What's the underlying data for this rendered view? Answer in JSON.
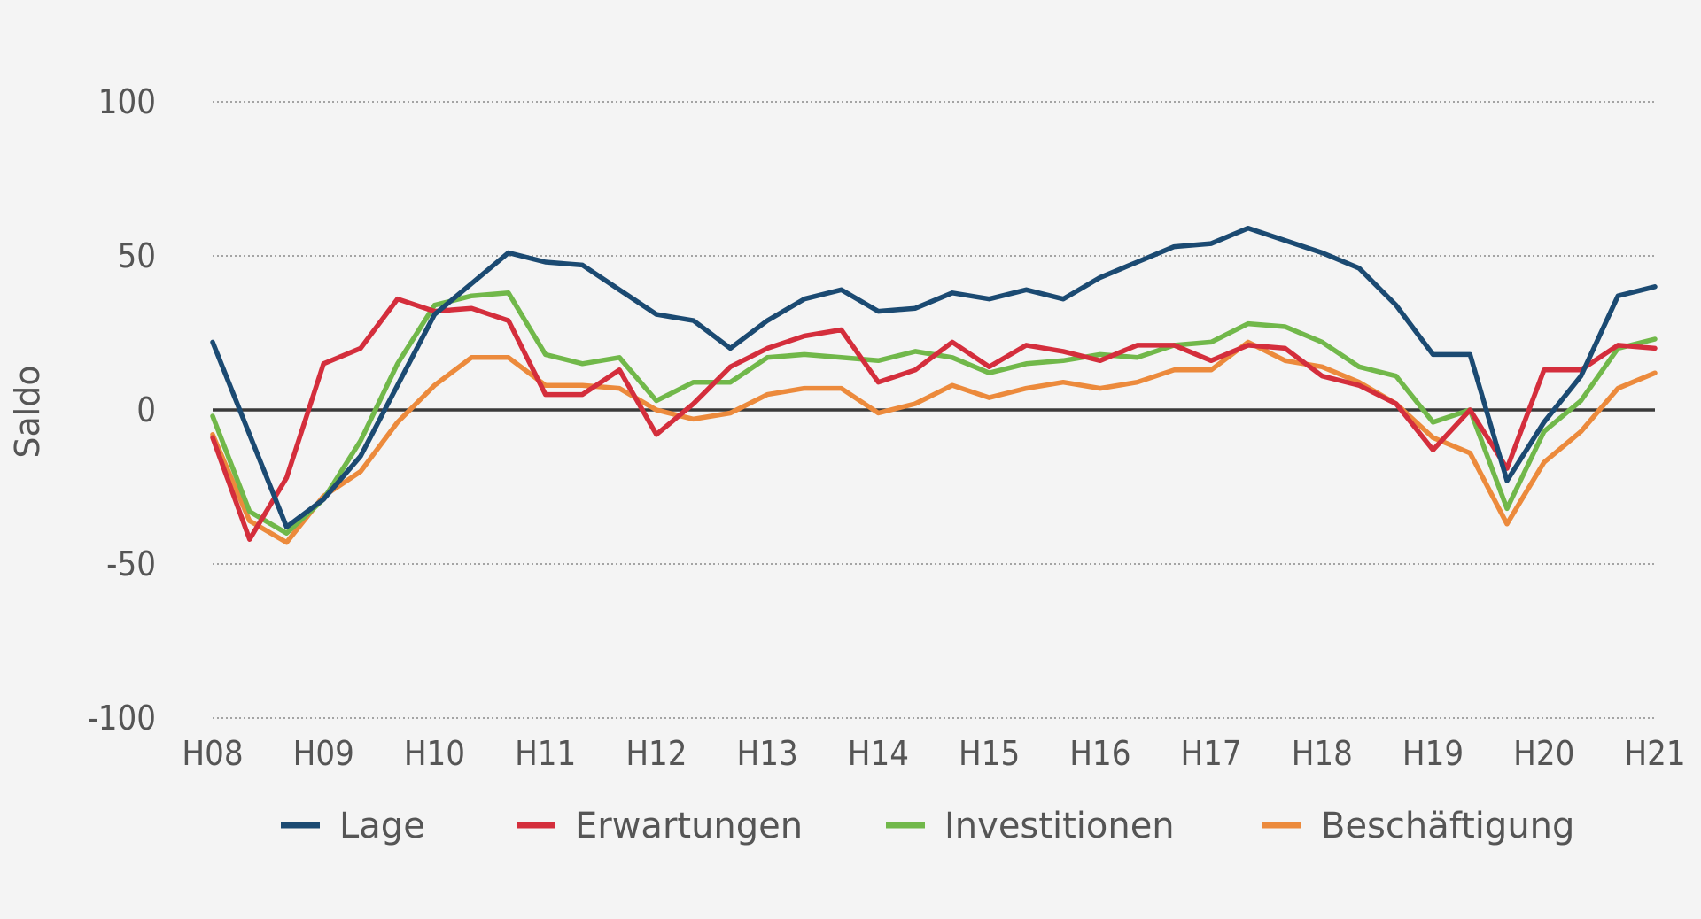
{
  "chart_data": {
    "type": "line",
    "ylabel": "Saldo",
    "ylim": [
      -100,
      100
    ],
    "yticks": [
      100,
      50,
      0,
      -50,
      -100
    ],
    "ytick_labels": [
      "100",
      "50",
      "0",
      "-50",
      "-100"
    ],
    "x_tick_labels": [
      "H08",
      "H09",
      "H10",
      "H11",
      "H12",
      "H13",
      "H14",
      "H15",
      "H16",
      "H17",
      "H18",
      "H19",
      "H20",
      "H21"
    ],
    "x_range": [
      0,
      39
    ],
    "grid": "horizontal dotted",
    "legend_position": "bottom",
    "zero_line": true,
    "series": [
      {
        "name": "Lage",
        "color": "#1b4a72",
        "values": [
          22,
          -8,
          -38,
          -29,
          -15,
          8,
          31,
          41,
          51,
          48,
          47,
          39,
          31,
          29,
          20,
          29,
          36,
          39,
          32,
          33,
          38,
          36,
          39,
          36,
          43,
          48,
          53,
          54,
          59,
          55,
          51,
          46,
          34,
          18,
          18,
          -23,
          -4,
          11,
          37,
          40
        ]
      },
      {
        "name": "Erwartungen",
        "color": "#d42e3c",
        "values": [
          -9,
          -42,
          -22,
          15,
          20,
          36,
          32,
          33,
          29,
          5,
          5,
          13,
          -8,
          2,
          14,
          20,
          24,
          26,
          9,
          13,
          22,
          14,
          21,
          19,
          16,
          21,
          21,
          16,
          21,
          20,
          11,
          8,
          2,
          -13,
          0,
          -19,
          13,
          13,
          21,
          20
        ]
      },
      {
        "name": "Investitionen",
        "color": "#71b84a",
        "values": [
          -2,
          -33,
          -40,
          -29,
          -10,
          15,
          34,
          37,
          38,
          18,
          15,
          17,
          3,
          9,
          9,
          17,
          18,
          17,
          16,
          19,
          17,
          12,
          15,
          16,
          18,
          17,
          21,
          22,
          28,
          27,
          22,
          14,
          11,
          -4,
          0,
          -32,
          -7,
          3,
          20,
          23
        ]
      },
      {
        "name": "Beschäftigung",
        "color": "#ec8a3c",
        "values": [
          -8,
          -36,
          -43,
          -28,
          -20,
          -4,
          8,
          17,
          17,
          8,
          8,
          7,
          0,
          -3,
          -1,
          5,
          7,
          7,
          -1,
          2,
          8,
          4,
          7,
          9,
          7,
          9,
          13,
          13,
          22,
          16,
          14,
          9,
          2,
          -9,
          -14,
          -37,
          -17,
          -7,
          7,
          12
        ]
      }
    ]
  }
}
